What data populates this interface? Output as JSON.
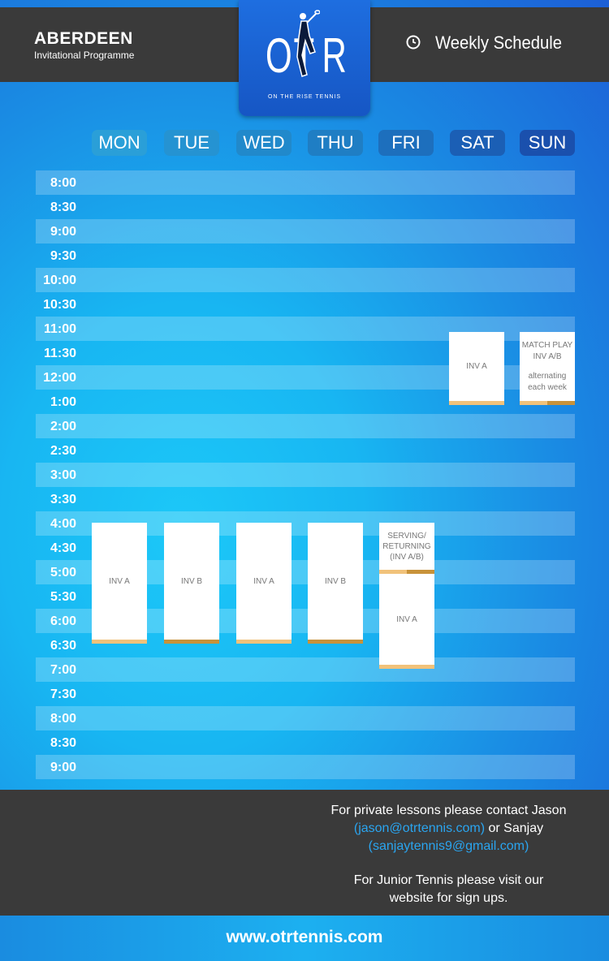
{
  "header": {
    "brand_title": "ABERDEEN",
    "brand_subtitle": "Invitational Programme",
    "logo_text_o": "O",
    "logo_text_t": "T",
    "logo_text_r": "R",
    "logo_caption": "ON THE RISE TENNIS",
    "schedule_label": "Weekly Schedule"
  },
  "days": [
    "MON",
    "TUE",
    "WED",
    "THU",
    "FRI",
    "SAT",
    "SUN"
  ],
  "times": [
    "8:00",
    "8:30",
    "9:00",
    "9:30",
    "10:00",
    "10:30",
    "11:00",
    "11:30",
    "12:00",
    "1:00",
    "2:00",
    "2:30",
    "3:00",
    "3:30",
    "4:00",
    "4:30",
    "5:00",
    "5:30",
    "6:00",
    "6:30",
    "7:00",
    "7:30",
    "8:00",
    "8:30",
    "9:00"
  ],
  "sessions": {
    "mon": "INV A",
    "tue": "INV B",
    "wed": "INV A",
    "thu": "INV B",
    "fri_top": "SERVING/ RETURNING (INV A/B)",
    "fri_bottom": "INV A",
    "sat": "INV A",
    "sun_line1": "MATCH PLAY",
    "sun_line2": "INV A/B",
    "sun_line3": "alternating",
    "sun_line4": "each week"
  },
  "footer": {
    "line1": "For private lessons please contact Jason",
    "email_jason": "(jason@otrtennis.com)",
    "or_sanjay": " or Sanjay",
    "email_sanjay": "(sanjaytennis9@gmail.com)",
    "line4": "For Junior Tennis please visit our",
    "line5": "website for sign ups.",
    "url": "www.otrtennis.com"
  },
  "colors": {
    "bar_light": "#f1c27a",
    "bar_dark": "#c8923a",
    "dark_panel": "#3a3a3a",
    "email": "#2aa5f0"
  }
}
